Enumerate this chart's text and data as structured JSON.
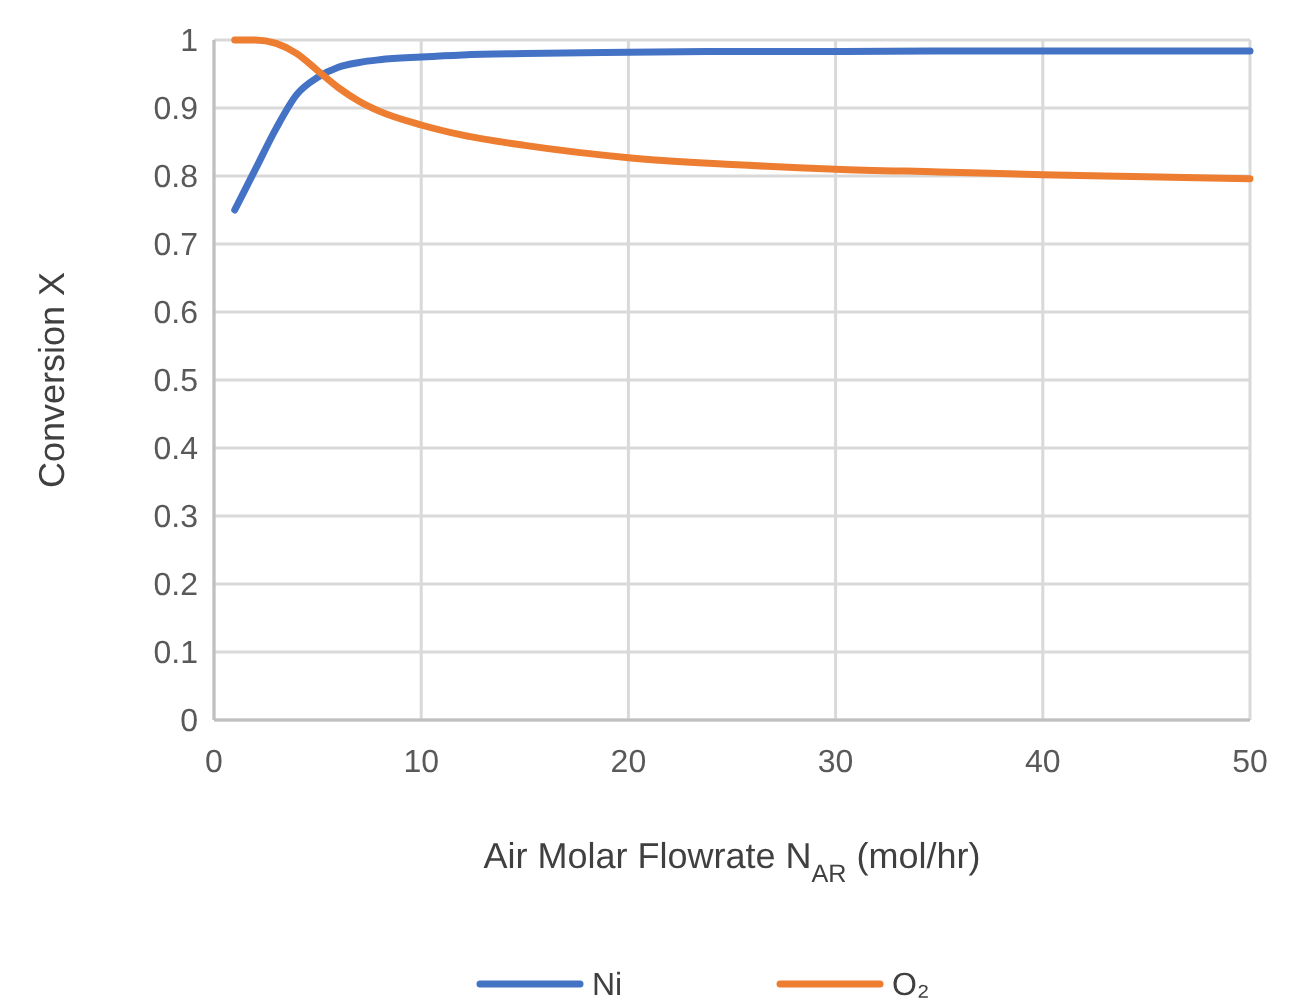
{
  "chart_data": {
    "type": "line",
    "xlabel": "Air Molar Flowrate N$_{AR}$ (mol/hr)",
    "ylabel": "Conversion X",
    "xlim": [
      0,
      50
    ],
    "xticks": [
      0,
      10,
      20,
      30,
      40,
      50
    ],
    "ylim": [
      0,
      1
    ],
    "yticks": [
      0,
      0.1,
      0.2,
      0.3,
      0.4,
      0.5,
      0.6,
      0.7,
      0.8,
      0.9,
      1
    ],
    "grid": true,
    "legend": "bottom",
    "marker": "none",
    "line_style": "solid",
    "series": [
      {
        "name": "Ni",
        "color": "#4472c4",
        "x": [
          1,
          2,
          3,
          4,
          5,
          6,
          7,
          8,
          10,
          12,
          15,
          20,
          25,
          30,
          35,
          40,
          45,
          50
        ],
        "values": [
          0.75,
          0.81,
          0.87,
          0.92,
          0.945,
          0.96,
          0.967,
          0.971,
          0.975,
          0.978,
          0.98,
          0.982,
          0.983,
          0.983,
          0.984,
          0.984,
          0.984,
          0.984
        ]
      },
      {
        "name": "O₂",
        "color": "#ed7d31",
        "x": [
          1,
          2,
          3,
          4,
          5,
          6,
          7,
          8,
          10,
          12,
          15,
          20,
          25,
          30,
          35,
          40,
          45,
          50
        ],
        "values": [
          1,
          1,
          0.995,
          0.98,
          0.955,
          0.93,
          0.91,
          0.895,
          0.875,
          0.86,
          0.845,
          0.827,
          0.817,
          0.81,
          0.806,
          0.802,
          0.799,
          0.796
        ]
      }
    ]
  }
}
